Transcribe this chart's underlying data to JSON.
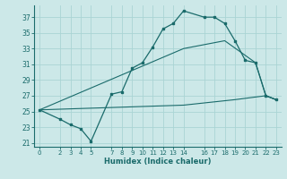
{
  "xlabel": "Humidex (Indice chaleur)",
  "bg_color": "#cce8e8",
  "grid_color": "#aad4d4",
  "line_color": "#1a6b6b",
  "xlim": [
    -0.5,
    23.5
  ],
  "ylim": [
    20.5,
    38.5
  ],
  "xticks": [
    0,
    2,
    3,
    4,
    5,
    7,
    8,
    9,
    10,
    11,
    12,
    13,
    14,
    16,
    17,
    18,
    19,
    20,
    21,
    22,
    23
  ],
  "yticks": [
    21,
    23,
    25,
    27,
    29,
    31,
    33,
    35,
    37
  ],
  "line1_x": [
    0,
    2,
    3,
    4,
    5,
    7,
    8,
    9,
    10,
    11,
    12,
    13,
    14,
    16,
    17,
    18,
    19,
    20,
    21,
    22,
    23
  ],
  "line1_y": [
    25.2,
    24.0,
    23.3,
    22.8,
    21.2,
    27.2,
    27.5,
    30.5,
    31.2,
    33.2,
    35.5,
    36.2,
    37.8,
    37.0,
    37.0,
    36.2,
    34.0,
    31.5,
    31.2,
    27.0,
    26.5
  ],
  "line2_x": [
    0,
    14,
    18,
    21,
    22,
    23
  ],
  "line2_y": [
    25.2,
    33.0,
    34.0,
    31.2,
    27.0,
    26.5
  ],
  "line3_x": [
    0,
    14,
    19,
    22,
    23
  ],
  "line3_y": [
    25.2,
    25.8,
    26.5,
    27.0,
    26.5
  ]
}
